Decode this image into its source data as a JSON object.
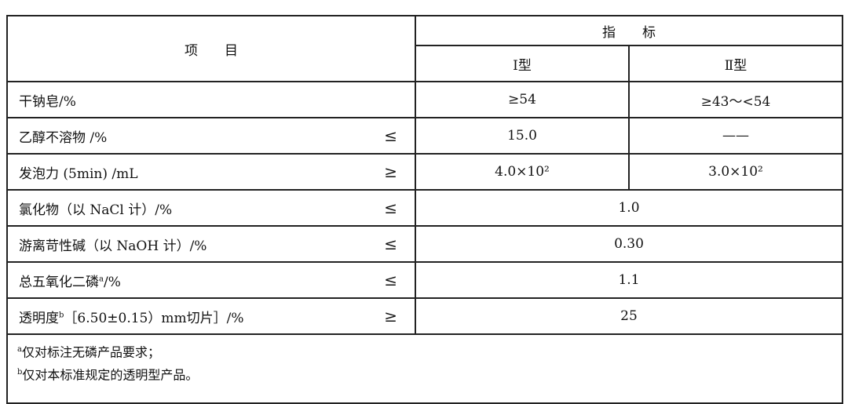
{
  "header": {
    "item": "项　　目",
    "index": "指　　标",
    "type1": "Ⅰ型",
    "type2": "Ⅱ型"
  },
  "rows": [
    {
      "name": "干钠皂/%",
      "sign": "",
      "type1": "≥54",
      "type2": "≥43～<54"
    },
    {
      "name": "乙醇不溶物 /%",
      "sign": "≤",
      "type1": "15.0",
      "type2": "——"
    },
    {
      "name": "发泡力 (5min) /mL",
      "sign": "≥",
      "type1": "4.0×10²",
      "type2": "3.0×10²"
    },
    {
      "name": "氯化物（以 NaCl 计）/%",
      "sign": "≤",
      "value": "1.0"
    },
    {
      "name": "游离苛性碱（以 NaOH 计）/%",
      "sign": "≤",
      "value": "0.30"
    },
    {
      "name": "总五氧化二磷",
      "sup": "a",
      "suffix": "/%",
      "sign": "≤",
      "value": "1.1"
    },
    {
      "name": "透明度",
      "sup": "b",
      "suffix": "［6.50±0.15）mm切片］/%",
      "sign": "≥",
      "value": "25"
    }
  ],
  "notes": [
    {
      "mark": "a",
      "text": "仅对标注无磷产品要求；"
    },
    {
      "mark": "b",
      "text": "仅对本标准规定的透明型产品。"
    }
  ]
}
